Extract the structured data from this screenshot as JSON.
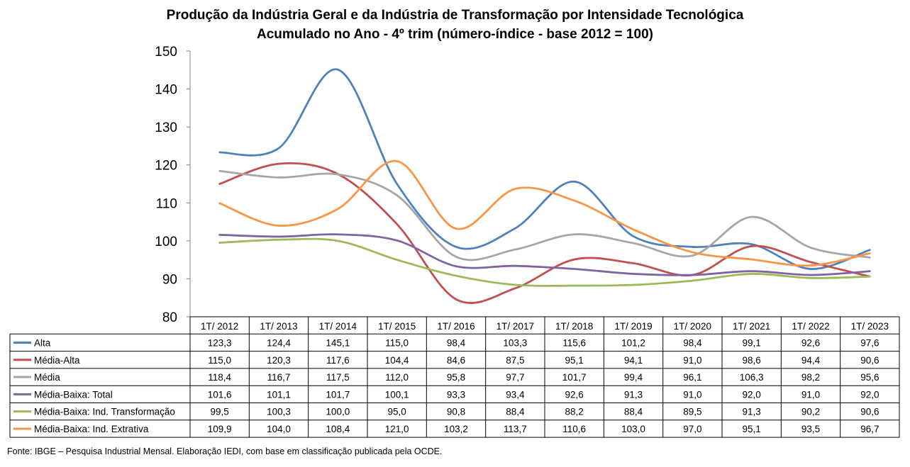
{
  "chart_data": {
    "type": "line",
    "title": "Produção da Indústria Geral e da Indústria de Transformação por Intensidade Tecnológica",
    "subtitle": "Acumulado no Ano - 4º trim (número-índice - base 2012 = 100)",
    "categories": [
      "1T/ 2012",
      "1T/ 2013",
      "1T/ 2014",
      "1T/ 2015",
      "1T/ 2016",
      "1T/ 2017",
      "1T/ 2018",
      "1T/ 2019",
      "1T/ 2020",
      "1T/ 2021",
      "1T/ 2022",
      "1T/ 2023"
    ],
    "ylim": [
      80,
      150
    ],
    "yticks": [
      "80",
      "90",
      "100",
      "110",
      "120",
      "130",
      "140",
      "150"
    ],
    "legend": "data-table",
    "grid": false,
    "series": [
      {
        "name": "Alta",
        "color": "#4F81BD",
        "values": [
          123.3,
          124.4,
          145.1,
          115.0,
          98.4,
          103.3,
          115.6,
          101.2,
          98.4,
          99.1,
          92.6,
          97.6
        ],
        "labels": [
          "123,3",
          "124,4",
          "145,1",
          "115,0",
          "98,4",
          "103,3",
          "115,6",
          "101,2",
          "98,4",
          "99,1",
          "92,6",
          "97,6"
        ]
      },
      {
        "name": "Média-Alta",
        "color": "#C0504D",
        "values": [
          115.0,
          120.3,
          117.6,
          104.4,
          84.6,
          87.5,
          95.1,
          94.1,
          91.0,
          98.6,
          94.4,
          90.6
        ],
        "labels": [
          "115,0",
          "120,3",
          "117,6",
          "104,4",
          "84,6",
          "87,5",
          "95,1",
          "94,1",
          "91,0",
          "98,6",
          "94,4",
          "90,6"
        ]
      },
      {
        "name": "Média",
        "color": "#A6A6A6",
        "values": [
          118.4,
          116.7,
          117.5,
          112.0,
          95.8,
          97.7,
          101.7,
          99.4,
          96.1,
          106.3,
          98.2,
          95.6
        ],
        "labels": [
          "118,4",
          "116,7",
          "117,5",
          "112,0",
          "95,8",
          "97,7",
          "101,7",
          "99,4",
          "96,1",
          "106,3",
          "98,2",
          "95,6"
        ]
      },
      {
        "name": "Média-Baixa: Total",
        "color": "#8064A2",
        "values": [
          101.6,
          101.1,
          101.7,
          100.1,
          93.3,
          93.4,
          92.6,
          91.3,
          91.0,
          92.0,
          91.0,
          92.0
        ],
        "labels": [
          "101,6",
          "101,1",
          "101,7",
          "100,1",
          "93,3",
          "93,4",
          "92,6",
          "91,3",
          "91,0",
          "92,0",
          "91,0",
          "92,0"
        ]
      },
      {
        "name": "Média-Baixa: Ind. Transformação",
        "color": "#9BBB59",
        "values": [
          99.5,
          100.3,
          100.0,
          95.0,
          90.8,
          88.4,
          88.2,
          88.4,
          89.5,
          91.3,
          90.2,
          90.6
        ],
        "labels": [
          "99,5",
          "100,3",
          "100,0",
          "95,0",
          "90,8",
          "88,4",
          "88,2",
          "88,4",
          "89,5",
          "91,3",
          "90,2",
          "90,6"
        ]
      },
      {
        "name": "Média-Baixa: Ind. Extrativa",
        "color": "#F79646",
        "values": [
          109.9,
          104.0,
          108.4,
          121.0,
          103.2,
          113.7,
          110.6,
          103.0,
          97.0,
          95.1,
          93.5,
          96.7
        ],
        "labels": [
          "109,9",
          "104,0",
          "108,4",
          "121,0",
          "103,2",
          "113,7",
          "110,6",
          "103,0",
          "97,0",
          "95,1",
          "93,5",
          "96,7"
        ]
      }
    ]
  },
  "source": "Fonte: IBGE – Pesquisa Industrial Mensal. Elaboração IEDI, com base em classificação publicada pela OCDE."
}
